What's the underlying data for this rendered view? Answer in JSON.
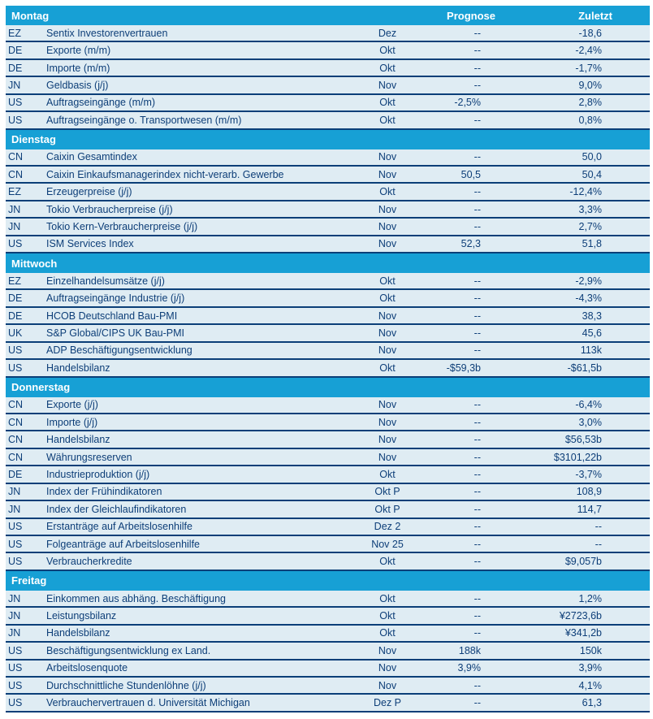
{
  "colors": {
    "header_bg": "#17a0d5",
    "header_text": "#ffffff",
    "row_bg": "#dfecf3",
    "divider": "#0b3f78",
    "text": "#0d3e78"
  },
  "columns": {
    "forecast_label": "Prognose",
    "last_label": "Zuletzt"
  },
  "sections": [
    {
      "day": "Montag",
      "rows": [
        {
          "country": "EZ",
          "indicator": "Sentix Investorenvertrauen",
          "period": "Dez",
          "forecast": "--",
          "last": "-18,6"
        },
        {
          "country": "DE",
          "indicator": "Exporte (m/m)",
          "period": "Okt",
          "forecast": "--",
          "last": "-2,4%"
        },
        {
          "country": "DE",
          "indicator": "Importe (m/m)",
          "period": "Okt",
          "forecast": "--",
          "last": "-1,7%"
        },
        {
          "country": "JN",
          "indicator": "Geldbasis (j/j)",
          "period": "Nov",
          "forecast": "--",
          "last": "9,0%"
        },
        {
          "country": "US",
          "indicator": "Auftragseingänge (m/m)",
          "period": "Okt",
          "forecast": "-2,5%",
          "last": "2,8%"
        },
        {
          "country": "US",
          "indicator": "Auftragseingänge o. Transportwesen (m/m)",
          "period": "Okt",
          "forecast": "--",
          "last": "0,8%"
        }
      ]
    },
    {
      "day": "Dienstag",
      "rows": [
        {
          "country": "CN",
          "indicator": "Caixin Gesamtindex",
          "period": "Nov",
          "forecast": "--",
          "last": "50,0"
        },
        {
          "country": "CN",
          "indicator": "Caixin Einkaufsmanagerindex nicht-verarb. Gewerbe",
          "period": "Nov",
          "forecast": "50,5",
          "last": "50,4"
        },
        {
          "country": "EZ",
          "indicator": "Erzeugerpreise (j/j)",
          "period": "Okt",
          "forecast": "--",
          "last": "-12,4%"
        },
        {
          "country": "JN",
          "indicator": "Tokio Verbraucherpreise (j/j)",
          "period": "Nov",
          "forecast": "--",
          "last": "3,3%"
        },
        {
          "country": "JN",
          "indicator": "Tokio Kern-Verbraucherpreise (j/j)",
          "period": "Nov",
          "forecast": "--",
          "last": "2,7%"
        },
        {
          "country": "US",
          "indicator": "ISM Services Index",
          "period": "Nov",
          "forecast": "52,3",
          "last": "51,8"
        }
      ]
    },
    {
      "day": "Mittwoch",
      "rows": [
        {
          "country": "EZ",
          "indicator": "Einzelhandelsumsätze (j/j)",
          "period": "Okt",
          "forecast": "--",
          "last": "-2,9%"
        },
        {
          "country": "DE",
          "indicator": "Auftragseingänge Industrie (j/j)",
          "period": "Okt",
          "forecast": "--",
          "last": "-4,3%"
        },
        {
          "country": "DE",
          "indicator": "HCOB Deutschland Bau-PMI",
          "period": "Nov",
          "forecast": "--",
          "last": "38,3"
        },
        {
          "country": "UK",
          "indicator": "S&P Global/CIPS UK Bau-PMI",
          "period": "Nov",
          "forecast": "--",
          "last": "45,6"
        },
        {
          "country": "US",
          "indicator": "ADP Beschäftigungsentwicklung",
          "period": "Nov",
          "forecast": "--",
          "last": "113k"
        },
        {
          "country": "US",
          "indicator": "Handelsbilanz",
          "period": "Okt",
          "forecast": "-$59,3b",
          "last": "-$61,5b"
        }
      ]
    },
    {
      "day": "Donnerstag",
      "rows": [
        {
          "country": "CN",
          "indicator": "Exporte (j/j)",
          "period": "Nov",
          "forecast": "--",
          "last": "-6,4%"
        },
        {
          "country": "CN",
          "indicator": "Importe (j/j)",
          "period": "Nov",
          "forecast": "--",
          "last": "3,0%"
        },
        {
          "country": "CN",
          "indicator": "Handelsbilanz",
          "period": "Nov",
          "forecast": "--",
          "last": "$56,53b"
        },
        {
          "country": "CN",
          "indicator": "Währungsreserven",
          "period": "Nov",
          "forecast": "--",
          "last": "$3101,22b"
        },
        {
          "country": "DE",
          "indicator": "Industrieproduktion (j/j)",
          "period": "Okt",
          "forecast": "--",
          "last": "-3,7%"
        },
        {
          "country": "JN",
          "indicator": "Index der Frühindikatoren",
          "period": "Okt P",
          "forecast": "--",
          "last": "108,9"
        },
        {
          "country": "JN",
          "indicator": "Index der Gleichlaufindikatoren",
          "period": "Okt P",
          "forecast": "--",
          "last": "114,7"
        },
        {
          "country": "US",
          "indicator": "Erstanträge auf Arbeitslosenhilfe",
          "period": "Dez 2",
          "forecast": "--",
          "last": "--"
        },
        {
          "country": "US",
          "indicator": "Folgeanträge auf Arbeitslosenhilfe",
          "period": "Nov 25",
          "forecast": "--",
          "last": "--"
        },
        {
          "country": "US",
          "indicator": "Verbraucherkredite",
          "period": "Okt",
          "forecast": "--",
          "last": "$9,057b"
        }
      ]
    },
    {
      "day": "Freitag",
      "rows": [
        {
          "country": "JN",
          "indicator": "Einkommen aus abhäng. Beschäftigung",
          "period": "Okt",
          "forecast": "--",
          "last": "1,2%"
        },
        {
          "country": "JN",
          "indicator": "Leistungsbilanz",
          "period": "Okt",
          "forecast": "--",
          "last": "¥2723,6b"
        },
        {
          "country": "JN",
          "indicator": "Handelsbilanz",
          "period": "Okt",
          "forecast": "--",
          "last": "¥341,2b"
        },
        {
          "country": "US",
          "indicator": "Beschäftigungsentwicklung ex Land.",
          "period": "Nov",
          "forecast": "188k",
          "last": "150k"
        },
        {
          "country": "US",
          "indicator": "Arbeitslosenquote",
          "period": "Nov",
          "forecast": "3,9%",
          "last": "3,9%"
        },
        {
          "country": "US",
          "indicator": "Durchschnittliche Stundenlöhne (j/j)",
          "period": "Nov",
          "forecast": "--",
          "last": "4,1%"
        },
        {
          "country": "US",
          "indicator": "Verbrauchervertrauen d. Universität Michigan",
          "period": "Dez P",
          "forecast": "--",
          "last": "61,3"
        }
      ]
    }
  ]
}
